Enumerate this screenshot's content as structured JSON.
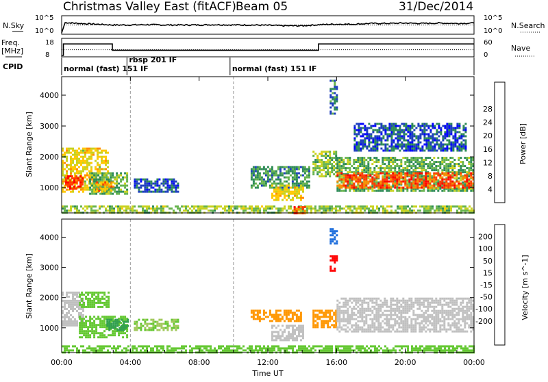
{
  "header": {
    "title": "Christmas Valley East (fitACF)",
    "beam": "Beam 05",
    "date": "31/Dec/2014"
  },
  "colors": {
    "background": "#ffffff",
    "axis": "#000000",
    "power_scale": [
      "#0000ff",
      "#1e3fbf",
      "#2e8b57",
      "#66b34d",
      "#c8d21e",
      "#ffc800",
      "#ff8c00",
      "#ff3c00",
      "#ff0000"
    ],
    "velocity_scale": [
      "#ff0000",
      "#ff6400",
      "#ff9600",
      "#ffc864",
      "#c0c0c0",
      "#a0c85a",
      "#64c832",
      "#32a050",
      "#1e6edc",
      "#0000dc"
    ]
  },
  "chart_data": [
    {
      "type": "line",
      "title": "",
      "ylabel": "N.Sky",
      "right_label": "N.Search",
      "y_ticks_left": [
        "10^5",
        "10^0"
      ],
      "y_ticks_right": [
        "10^5",
        "10^0"
      ],
      "x_range": [
        0,
        24
      ],
      "series": [
        {
          "name": "N.Sky",
          "x": [
            0,
            0.2,
            1,
            2,
            3,
            4,
            5,
            6,
            7,
            8,
            9,
            10,
            11,
            12,
            13,
            14,
            15,
            16,
            17,
            18,
            19,
            20,
            21,
            22,
            23,
            24
          ],
          "values": [
            0,
            0.65,
            0.6,
            0.55,
            0.5,
            0.5,
            0.52,
            0.5,
            0.5,
            0.5,
            0.52,
            0.5,
            0.5,
            0.48,
            0.45,
            0.45,
            0.52,
            0.55,
            0.55,
            0.6,
            0.6,
            0.62,
            0.6,
            0.62,
            0.6,
            0.62
          ]
        },
        {
          "name": "N.Search",
          "x": [
            0,
            24
          ],
          "values": [
            0.5,
            0.5
          ]
        }
      ]
    },
    {
      "type": "line",
      "ylabel": "Freq. [MHz]",
      "right_label": "Nave",
      "y_ticks_left": [
        "18",
        "8"
      ],
      "y_ticks_right": [
        "60",
        "0"
      ],
      "x_range": [
        0,
        24
      ],
      "series": [
        {
          "name": "Freq.",
          "x": [
            0,
            0.1,
            0.1,
            2.95,
            2.95,
            14.95,
            14.95,
            24
          ],
          "values": [
            8,
            8,
            15.3,
            15.3,
            11.3,
            11.3,
            15.3,
            15.3
          ]
        },
        {
          "name": "Nave",
          "x": [
            0,
            24
          ],
          "values": [
            22,
            22
          ]
        }
      ]
    },
    {
      "type": "table",
      "label": "CPID",
      "segments": [
        {
          "start": 0,
          "text": "normal (fast) 151 IF"
        },
        {
          "start": 3.8,
          "text": "rbsp 201 IF"
        },
        {
          "start": 9.8,
          "text": "normal (fast) 151 IF"
        }
      ]
    },
    {
      "type": "heatmap",
      "parameter": "Power",
      "ylabel": "Slant Range [km]",
      "y_ticks": [
        1000,
        2000,
        3000,
        4000
      ],
      "ylim": [
        180,
        4600
      ],
      "x_range": [
        0,
        24
      ],
      "colorbar": {
        "label": "Power [dB]",
        "ticks": [
          4,
          8,
          12,
          16,
          20,
          24,
          28
        ]
      },
      "regions": [
        {
          "t0": 0.0,
          "t1": 2.7,
          "r0": 900,
          "r1": 2300,
          "level": 18
        },
        {
          "t0": 0.2,
          "t1": 1.2,
          "r0": 1000,
          "r1": 1400,
          "level": 28
        },
        {
          "t0": 1.6,
          "t1": 3.8,
          "r0": 800,
          "r1": 1500,
          "level": 12
        },
        {
          "t0": 2.0,
          "t1": 3.0,
          "r0": 900,
          "r1": 1200,
          "level": 22
        },
        {
          "t0": 4.2,
          "t1": 6.8,
          "r0": 900,
          "r1": 1300,
          "level": 6
        },
        {
          "t0": 11.0,
          "t1": 14.4,
          "r0": 1000,
          "r1": 1700,
          "level": 10
        },
        {
          "t0": 12.2,
          "t1": 14.0,
          "r0": 600,
          "r1": 1100,
          "level": 18
        },
        {
          "t0": 14.6,
          "t1": 16.0,
          "r0": 1400,
          "r1": 2200,
          "level": 14
        },
        {
          "t0": 16.0,
          "t1": 24.0,
          "r0": 900,
          "r1": 2000,
          "level": 12
        },
        {
          "t0": 16.0,
          "t1": 24.0,
          "r0": 1000,
          "r1": 1500,
          "level": 26
        },
        {
          "t0": 17.0,
          "t1": 23.5,
          "r0": 2200,
          "r1": 3100,
          "level": 6
        },
        {
          "t0": 0.0,
          "t1": 24.0,
          "r0": 180,
          "r1": 420,
          "level": 14
        },
        {
          "t0": 13.5,
          "t1": 14.2,
          "r0": 180,
          "r1": 400,
          "level": 26
        },
        {
          "t0": 15.6,
          "t1": 16.0,
          "r0": 3400,
          "r1": 4500,
          "level": 8
        }
      ]
    },
    {
      "type": "heatmap",
      "parameter": "Velocity",
      "ylabel": "Slant Range [km]",
      "y_ticks": [
        1000,
        2000,
        3000,
        4000
      ],
      "ylim": [
        180,
        4600
      ],
      "x_range": [
        0,
        24
      ],
      "colorbar": {
        "label": "Velocity [m s^-1]",
        "ticks": [
          200,
          100,
          50,
          15,
          -15,
          -50,
          -100,
          -200
        ]
      },
      "regions": [
        {
          "t0": 0.0,
          "t1": 1.2,
          "r0": 1100,
          "r1": 2200,
          "level": 0
        },
        {
          "t0": 1.0,
          "t1": 2.7,
          "r0": 1700,
          "r1": 2200,
          "level": 40
        },
        {
          "t0": 1.0,
          "t1": 3.8,
          "r0": 700,
          "r1": 1400,
          "level": 40
        },
        {
          "t0": 2.6,
          "t1": 3.8,
          "r0": 900,
          "r1": 1300,
          "level": 120
        },
        {
          "t0": 4.2,
          "t1": 6.8,
          "r0": 900,
          "r1": 1300,
          "level": 30
        },
        {
          "t0": 11.0,
          "t1": 13.9,
          "r0": 1200,
          "r1": 1600,
          "level": -60
        },
        {
          "t0": 12.2,
          "t1": 14.0,
          "r0": 600,
          "r1": 1100,
          "level": 0
        },
        {
          "t0": 14.6,
          "t1": 16.0,
          "r0": 1000,
          "r1": 1600,
          "level": -60
        },
        {
          "t0": 16.0,
          "t1": 24.0,
          "r0": 900,
          "r1": 2000,
          "level": 0
        },
        {
          "t0": 0.0,
          "t1": 24.0,
          "r0": 180,
          "r1": 420,
          "level": 40
        },
        {
          "t0": 15.6,
          "t1": 16.0,
          "r0": 2900,
          "r1": 3400,
          "level": -200
        },
        {
          "t0": 15.6,
          "t1": 16.0,
          "r0": 3800,
          "r1": 4300,
          "level": 200
        }
      ]
    }
  ],
  "time_axis": {
    "label": "Time UT",
    "ticks": [
      "00:00",
      "04:00",
      "08:00",
      "12:00",
      "16:00",
      "20:00",
      "00:00"
    ],
    "dashed_lines": [
      4,
      10
    ]
  }
}
